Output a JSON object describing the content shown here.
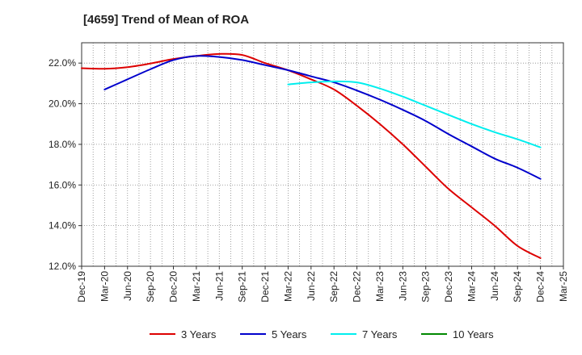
{
  "chart_data": {
    "type": "line",
    "title": "[4659]  Trend of Mean of ROA",
    "xlabel": "",
    "ylabel": "",
    "ylim": [
      12.0,
      23.0
    ],
    "yticks": [
      12.0,
      14.0,
      16.0,
      18.0,
      20.0,
      22.0
    ],
    "ytick_labels": [
      "12.0%",
      "14.0%",
      "16.0%",
      "18.0%",
      "20.0%",
      "22.0%"
    ],
    "categories": [
      "Dec-19",
      "Mar-20",
      "Jun-20",
      "Sep-20",
      "Dec-20",
      "Mar-21",
      "Jun-21",
      "Sep-21",
      "Dec-21",
      "Mar-22",
      "Jun-22",
      "Sep-22",
      "Dec-22",
      "Mar-23",
      "Jun-23",
      "Sep-23",
      "Dec-23",
      "Mar-24",
      "Jun-24",
      "Sep-24",
      "Dec-24",
      "Mar-25"
    ],
    "grid": true,
    "legend_position": "bottom",
    "series": [
      {
        "name": "3 Years",
        "color": "#dd0000",
        "values": [
          21.75,
          21.72,
          21.8,
          21.98,
          22.2,
          22.35,
          22.45,
          22.4,
          22.0,
          21.65,
          21.2,
          20.7,
          19.9,
          19.0,
          18.0,
          16.9,
          15.8,
          14.9,
          14.0,
          13.0,
          12.4,
          null
        ]
      },
      {
        "name": "5 Years",
        "color": "#0000cc",
        "values": [
          null,
          20.7,
          21.2,
          21.7,
          22.15,
          22.35,
          22.3,
          22.15,
          21.9,
          21.65,
          21.35,
          21.05,
          20.65,
          20.2,
          19.7,
          19.15,
          18.5,
          17.9,
          17.3,
          16.85,
          16.3,
          null
        ]
      },
      {
        "name": "7 Years",
        "color": "#00eeee",
        "values": [
          null,
          null,
          null,
          null,
          null,
          null,
          null,
          null,
          null,
          20.95,
          21.05,
          21.1,
          21.05,
          20.75,
          20.35,
          19.9,
          19.45,
          19.0,
          18.6,
          18.25,
          17.85,
          null
        ]
      },
      {
        "name": "10 Years",
        "color": "#008800",
        "values": [
          null,
          null,
          null,
          null,
          null,
          null,
          null,
          null,
          null,
          null,
          null,
          null,
          null,
          null,
          null,
          null,
          null,
          null,
          null,
          null,
          null,
          null
        ]
      }
    ]
  }
}
